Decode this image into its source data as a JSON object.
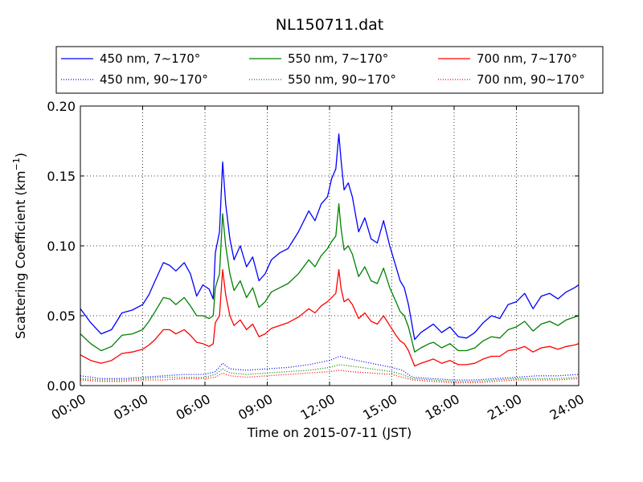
{
  "chart_data": {
    "type": "line",
    "title": "NL150711.dat",
    "xlabel": "Time on 2015-07-11 (JST)",
    "ylabel_main": "Scattering Coefficient (km",
    "ylabel_exp": "−1",
    "ylabel_close": ")",
    "xlim": [
      0,
      24
    ],
    "ylim": [
      0,
      0.2
    ],
    "grid": true,
    "legend_placement": "top",
    "x_ticks": [
      0,
      3,
      6,
      9,
      12,
      15,
      18,
      21,
      24
    ],
    "x_tick_labels": [
      "00:00",
      "03:00",
      "06:00",
      "09:00",
      "12:00",
      "15:00",
      "18:00",
      "21:00",
      "24:00"
    ],
    "y_ticks": [
      0,
      0.05,
      0.1,
      0.15,
      0.2
    ],
    "y_tick_labels": [
      "0.00",
      "0.05",
      "0.10",
      "0.15",
      "0.20"
    ],
    "series": [
      {
        "name": "450 nm, 7∼170°",
        "color": "#0000ff",
        "dash": "solid",
        "x": [
          0,
          0.5,
          1,
          1.5,
          2,
          2.5,
          3,
          3.3,
          3.6,
          4,
          4.3,
          4.6,
          5,
          5.3,
          5.6,
          5.9,
          6.2,
          6.4,
          6.5,
          6.7,
          6.85,
          7,
          7.2,
          7.4,
          7.7,
          8,
          8.3,
          8.6,
          8.9,
          9.2,
          9.6,
          10,
          10.5,
          11,
          11.3,
          11.6,
          11.9,
          12.1,
          12.3,
          12.45,
          12.55,
          12.7,
          12.9,
          13.1,
          13.4,
          13.7,
          14,
          14.3,
          14.6,
          14.9,
          15.2,
          15.4,
          15.6,
          15.8,
          16.1,
          16.4,
          16.8,
          17,
          17.4,
          17.8,
          18.2,
          18.6,
          19,
          19.4,
          19.8,
          20.2,
          20.6,
          21,
          21.4,
          21.8,
          22.2,
          22.6,
          23,
          23.4,
          23.8,
          24
        ],
        "y": [
          0.055,
          0.045,
          0.037,
          0.04,
          0.052,
          0.054,
          0.058,
          0.065,
          0.075,
          0.088,
          0.086,
          0.082,
          0.088,
          0.08,
          0.064,
          0.072,
          0.069,
          0.062,
          0.095,
          0.11,
          0.16,
          0.13,
          0.105,
          0.09,
          0.1,
          0.085,
          0.092,
          0.075,
          0.08,
          0.09,
          0.095,
          0.098,
          0.11,
          0.125,
          0.118,
          0.13,
          0.135,
          0.148,
          0.155,
          0.18,
          0.162,
          0.14,
          0.145,
          0.135,
          0.11,
          0.12,
          0.105,
          0.102,
          0.118,
          0.1,
          0.085,
          0.075,
          0.07,
          0.058,
          0.033,
          0.038,
          0.042,
          0.044,
          0.038,
          0.042,
          0.035,
          0.034,
          0.038,
          0.045,
          0.05,
          0.048,
          0.058,
          0.06,
          0.066,
          0.055,
          0.064,
          0.066,
          0.062,
          0.067,
          0.07,
          0.072
        ]
      },
      {
        "name": "550 nm, 7∼170°",
        "color": "#008000",
        "dash": "solid",
        "x": [
          0,
          0.5,
          1,
          1.5,
          2,
          2.5,
          3,
          3.3,
          3.6,
          4,
          4.3,
          4.6,
          5,
          5.3,
          5.6,
          5.9,
          6.2,
          6.4,
          6.5,
          6.7,
          6.85,
          7,
          7.2,
          7.4,
          7.7,
          8,
          8.3,
          8.6,
          8.9,
          9.2,
          9.6,
          10,
          10.5,
          11,
          11.3,
          11.6,
          11.9,
          12.1,
          12.3,
          12.45,
          12.55,
          12.7,
          12.9,
          13.1,
          13.4,
          13.7,
          14,
          14.3,
          14.6,
          14.9,
          15.2,
          15.4,
          15.6,
          15.8,
          16.1,
          16.4,
          16.8,
          17,
          17.4,
          17.8,
          18.2,
          18.6,
          19,
          19.4,
          19.8,
          20.2,
          20.6,
          21,
          21.4,
          21.8,
          22.2,
          22.6,
          23,
          23.4,
          23.8,
          24
        ],
        "y": [
          0.037,
          0.03,
          0.025,
          0.028,
          0.036,
          0.037,
          0.04,
          0.046,
          0.053,
          0.063,
          0.062,
          0.058,
          0.063,
          0.057,
          0.05,
          0.05,
          0.048,
          0.05,
          0.07,
          0.08,
          0.123,
          0.1,
          0.08,
          0.068,
          0.075,
          0.063,
          0.07,
          0.056,
          0.06,
          0.067,
          0.07,
          0.073,
          0.08,
          0.09,
          0.085,
          0.093,
          0.098,
          0.103,
          0.107,
          0.13,
          0.113,
          0.097,
          0.1,
          0.094,
          0.078,
          0.085,
          0.075,
          0.073,
          0.084,
          0.07,
          0.06,
          0.053,
          0.05,
          0.042,
          0.024,
          0.027,
          0.03,
          0.031,
          0.027,
          0.03,
          0.025,
          0.025,
          0.027,
          0.032,
          0.035,
          0.034,
          0.04,
          0.042,
          0.046,
          0.039,
          0.044,
          0.046,
          0.043,
          0.047,
          0.049,
          0.05
        ]
      },
      {
        "name": "700 nm, 7∼170°",
        "color": "#ff0000",
        "dash": "solid",
        "x": [
          0,
          0.5,
          1,
          1.5,
          2,
          2.5,
          3,
          3.3,
          3.6,
          4,
          4.3,
          4.6,
          5,
          5.3,
          5.6,
          5.9,
          6.2,
          6.4,
          6.5,
          6.7,
          6.85,
          7,
          7.2,
          7.4,
          7.7,
          8,
          8.3,
          8.6,
          8.9,
          9.2,
          9.6,
          10,
          10.5,
          11,
          11.3,
          11.6,
          11.9,
          12.1,
          12.3,
          12.45,
          12.55,
          12.7,
          12.9,
          13.1,
          13.4,
          13.7,
          14,
          14.3,
          14.6,
          14.9,
          15.2,
          15.4,
          15.6,
          15.8,
          16.1,
          16.4,
          16.8,
          17,
          17.4,
          17.8,
          18.2,
          18.6,
          19,
          19.4,
          19.8,
          20.2,
          20.6,
          21,
          21.4,
          21.8,
          22.2,
          22.6,
          23,
          23.4,
          23.8,
          24
        ],
        "y": [
          0.022,
          0.018,
          0.016,
          0.018,
          0.023,
          0.024,
          0.026,
          0.029,
          0.033,
          0.04,
          0.04,
          0.037,
          0.04,
          0.036,
          0.031,
          0.03,
          0.028,
          0.03,
          0.045,
          0.05,
          0.083,
          0.065,
          0.05,
          0.043,
          0.047,
          0.04,
          0.044,
          0.035,
          0.037,
          0.041,
          0.043,
          0.045,
          0.049,
          0.055,
          0.052,
          0.057,
          0.06,
          0.063,
          0.066,
          0.083,
          0.07,
          0.06,
          0.062,
          0.058,
          0.048,
          0.052,
          0.046,
          0.044,
          0.05,
          0.043,
          0.036,
          0.032,
          0.03,
          0.025,
          0.014,
          0.016,
          0.018,
          0.019,
          0.016,
          0.018,
          0.015,
          0.015,
          0.016,
          0.019,
          0.021,
          0.021,
          0.025,
          0.026,
          0.028,
          0.024,
          0.027,
          0.028,
          0.026,
          0.028,
          0.029,
          0.03
        ]
      },
      {
        "name": "450 nm, 90∼170°",
        "color": "#0000ff",
        "dash": "dotted",
        "x": [
          0,
          1,
          2,
          3,
          4,
          5,
          6,
          6.5,
          6.85,
          7.2,
          8,
          9,
          10,
          11,
          12,
          12.5,
          13,
          14,
          15,
          15.5,
          16,
          17,
          18,
          19,
          20,
          21,
          22,
          23,
          24
        ],
        "y": [
          0.007,
          0.005,
          0.005,
          0.006,
          0.007,
          0.008,
          0.008,
          0.01,
          0.016,
          0.012,
          0.011,
          0.012,
          0.013,
          0.015,
          0.018,
          0.021,
          0.019,
          0.016,
          0.013,
          0.011,
          0.006,
          0.005,
          0.004,
          0.004,
          0.005,
          0.006,
          0.007,
          0.007,
          0.008
        ]
      },
      {
        "name": "550 nm, 90∼170°",
        "color": "#008000",
        "dash": "dotted",
        "x": [
          0,
          1,
          2,
          3,
          4,
          5,
          6,
          6.5,
          6.85,
          7.2,
          8,
          9,
          10,
          11,
          12,
          12.5,
          13,
          14,
          15,
          15.5,
          16,
          17,
          18,
          19,
          20,
          21,
          22,
          23,
          24
        ],
        "y": [
          0.005,
          0.004,
          0.004,
          0.005,
          0.006,
          0.006,
          0.006,
          0.008,
          0.012,
          0.009,
          0.008,
          0.009,
          0.01,
          0.011,
          0.013,
          0.015,
          0.014,
          0.012,
          0.01,
          0.008,
          0.005,
          0.004,
          0.003,
          0.003,
          0.004,
          0.005,
          0.005,
          0.005,
          0.006
        ]
      },
      {
        "name": "700 nm, 90∼170°",
        "color": "#ff0000",
        "dash": "dotted",
        "x": [
          0,
          1,
          2,
          3,
          4,
          5,
          6,
          6.5,
          6.85,
          7.2,
          8,
          9,
          10,
          11,
          12,
          12.5,
          13,
          14,
          15,
          15.5,
          16,
          17,
          18,
          19,
          20,
          21,
          22,
          23,
          24
        ],
        "y": [
          0.004,
          0.003,
          0.003,
          0.004,
          0.004,
          0.005,
          0.005,
          0.006,
          0.009,
          0.007,
          0.006,
          0.007,
          0.008,
          0.009,
          0.01,
          0.011,
          0.01,
          0.009,
          0.008,
          0.006,
          0.004,
          0.003,
          0.002,
          0.002,
          0.003,
          0.004,
          0.004,
          0.004,
          0.005
        ]
      }
    ]
  }
}
